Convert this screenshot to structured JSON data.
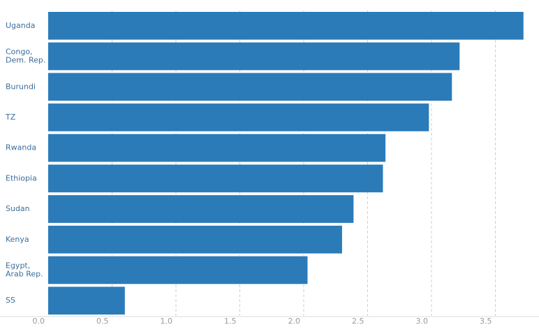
{
  "chart_data": {
    "type": "bar",
    "orientation": "horizontal",
    "categories": [
      "Uganda",
      "Congo,\nDem. Rep.",
      "Burundi",
      "TZ",
      "Rwanda",
      "Ethiopia",
      "Sudan",
      "Kenya",
      "Egypt,\nArab Rep.",
      "SS"
    ],
    "values": [
      3.72,
      3.22,
      3.16,
      2.98,
      2.64,
      2.62,
      2.39,
      2.3,
      2.03,
      0.6
    ],
    "color": "#2b7bb9",
    "xlim": [
      0,
      3.8
    ],
    "xticks": [
      {
        "value": 0,
        "label": "0.0"
      },
      0.5,
      {
        "value": 1,
        "label": "1.0"
      },
      1.5,
      {
        "value": 2,
        "label": "2.0"
      },
      2.5,
      {
        "value": 3,
        "label": "3.0"
      },
      3.5
    ],
    "grid": true
  }
}
